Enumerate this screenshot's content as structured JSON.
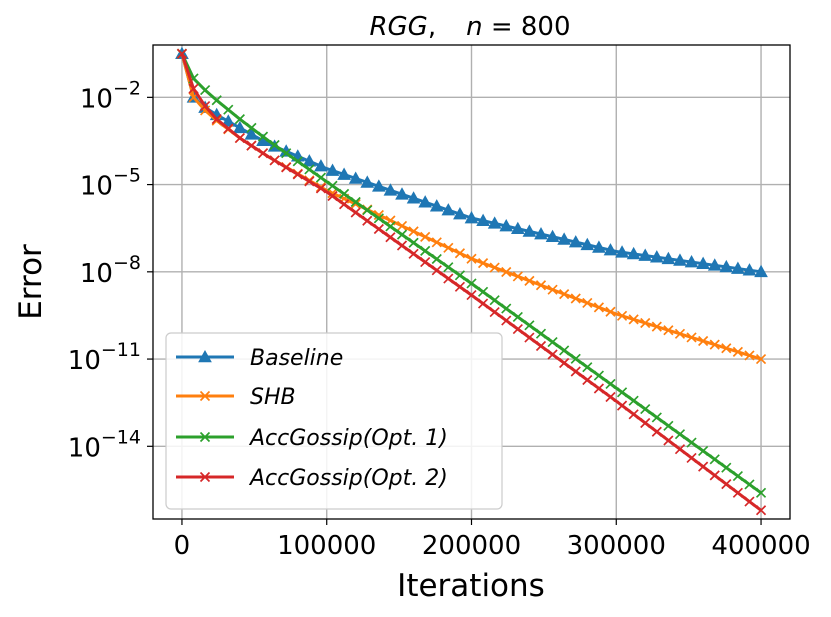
{
  "chart_data": {
    "type": "line",
    "title": "RGG, n = 800",
    "title_parts": {
      "name": "RGG",
      "sep": ",",
      "var": "n",
      "eq": " = 800"
    },
    "xlabel": "Iterations",
    "ylabel": "Error",
    "x_scale": "linear",
    "y_scale": "log",
    "xlim": [
      -20000,
      420000
    ],
    "ylim_log10": [
      -16.5,
      -0.2
    ],
    "grid": true,
    "legend_position": "lower-left",
    "x_ticks": [
      {
        "value": 0,
        "label": "0"
      },
      {
        "value": 100000,
        "label": "100000"
      },
      {
        "value": 200000,
        "label": "200000"
      },
      {
        "value": 300000,
        "label": "300000"
      },
      {
        "value": 400000,
        "label": "400000"
      }
    ],
    "y_ticks": [
      {
        "log10": -2,
        "base": "10",
        "exp": "−2"
      },
      {
        "log10": -5,
        "base": "10",
        "exp": "−5"
      },
      {
        "log10": -8,
        "base": "10",
        "exp": "−8"
      },
      {
        "log10": -11,
        "base": "10",
        "exp": "−11"
      },
      {
        "log10": -14,
        "base": "10",
        "exp": "−14"
      }
    ],
    "marker_step": 8000,
    "series": [
      {
        "name": "Baseline",
        "legend_label": "Baseline",
        "color": "#1f77b4",
        "marker": "triangle",
        "points": [
          [
            0,
            -0.5
          ],
          [
            8000,
            -2.0
          ],
          [
            16000,
            -2.35
          ],
          [
            24000,
            -2.6
          ],
          [
            40000,
            -3.05
          ],
          [
            60000,
            -3.6
          ],
          [
            100000,
            -4.45
          ],
          [
            200000,
            -6.15
          ],
          [
            300000,
            -7.3
          ],
          [
            400000,
            -8.0
          ]
        ]
      },
      {
        "name": "SHB",
        "legend_label": "SHB",
        "color": "#ff7f0e",
        "marker": "x",
        "points": [
          [
            0,
            -0.5
          ],
          [
            8000,
            -2.0
          ],
          [
            16000,
            -2.45
          ],
          [
            24000,
            -2.8
          ],
          [
            40000,
            -3.4
          ],
          [
            60000,
            -4.05
          ],
          [
            100000,
            -5.2
          ],
          [
            200000,
            -7.55
          ],
          [
            300000,
            -9.45
          ],
          [
            400000,
            -11.0
          ]
        ]
      },
      {
        "name": "AccGossip(Opt. 1)",
        "legend_label": "AccGossip(Opt. 1)",
        "color": "#2ca02c",
        "marker": "x",
        "points": [
          [
            0,
            -0.5
          ],
          [
            8000,
            -1.35
          ],
          [
            16000,
            -1.75
          ],
          [
            24000,
            -2.1
          ],
          [
            40000,
            -2.75
          ],
          [
            60000,
            -3.5
          ],
          [
            100000,
            -4.9
          ],
          [
            200000,
            -8.4
          ],
          [
            300000,
            -12.0
          ],
          [
            400000,
            -15.6
          ]
        ]
      },
      {
        "name": "AccGossip(Opt. 2)",
        "legend_label": "AccGossip(Opt. 2)",
        "color": "#d62728",
        "marker": "x",
        "points": [
          [
            0,
            -0.5
          ],
          [
            8000,
            -1.7
          ],
          [
            16000,
            -2.3
          ],
          [
            24000,
            -2.75
          ],
          [
            40000,
            -3.4
          ],
          [
            60000,
            -4.05
          ],
          [
            100000,
            -5.25
          ],
          [
            200000,
            -8.8
          ],
          [
            300000,
            -12.45
          ],
          [
            400000,
            -16.2
          ]
        ]
      }
    ]
  }
}
